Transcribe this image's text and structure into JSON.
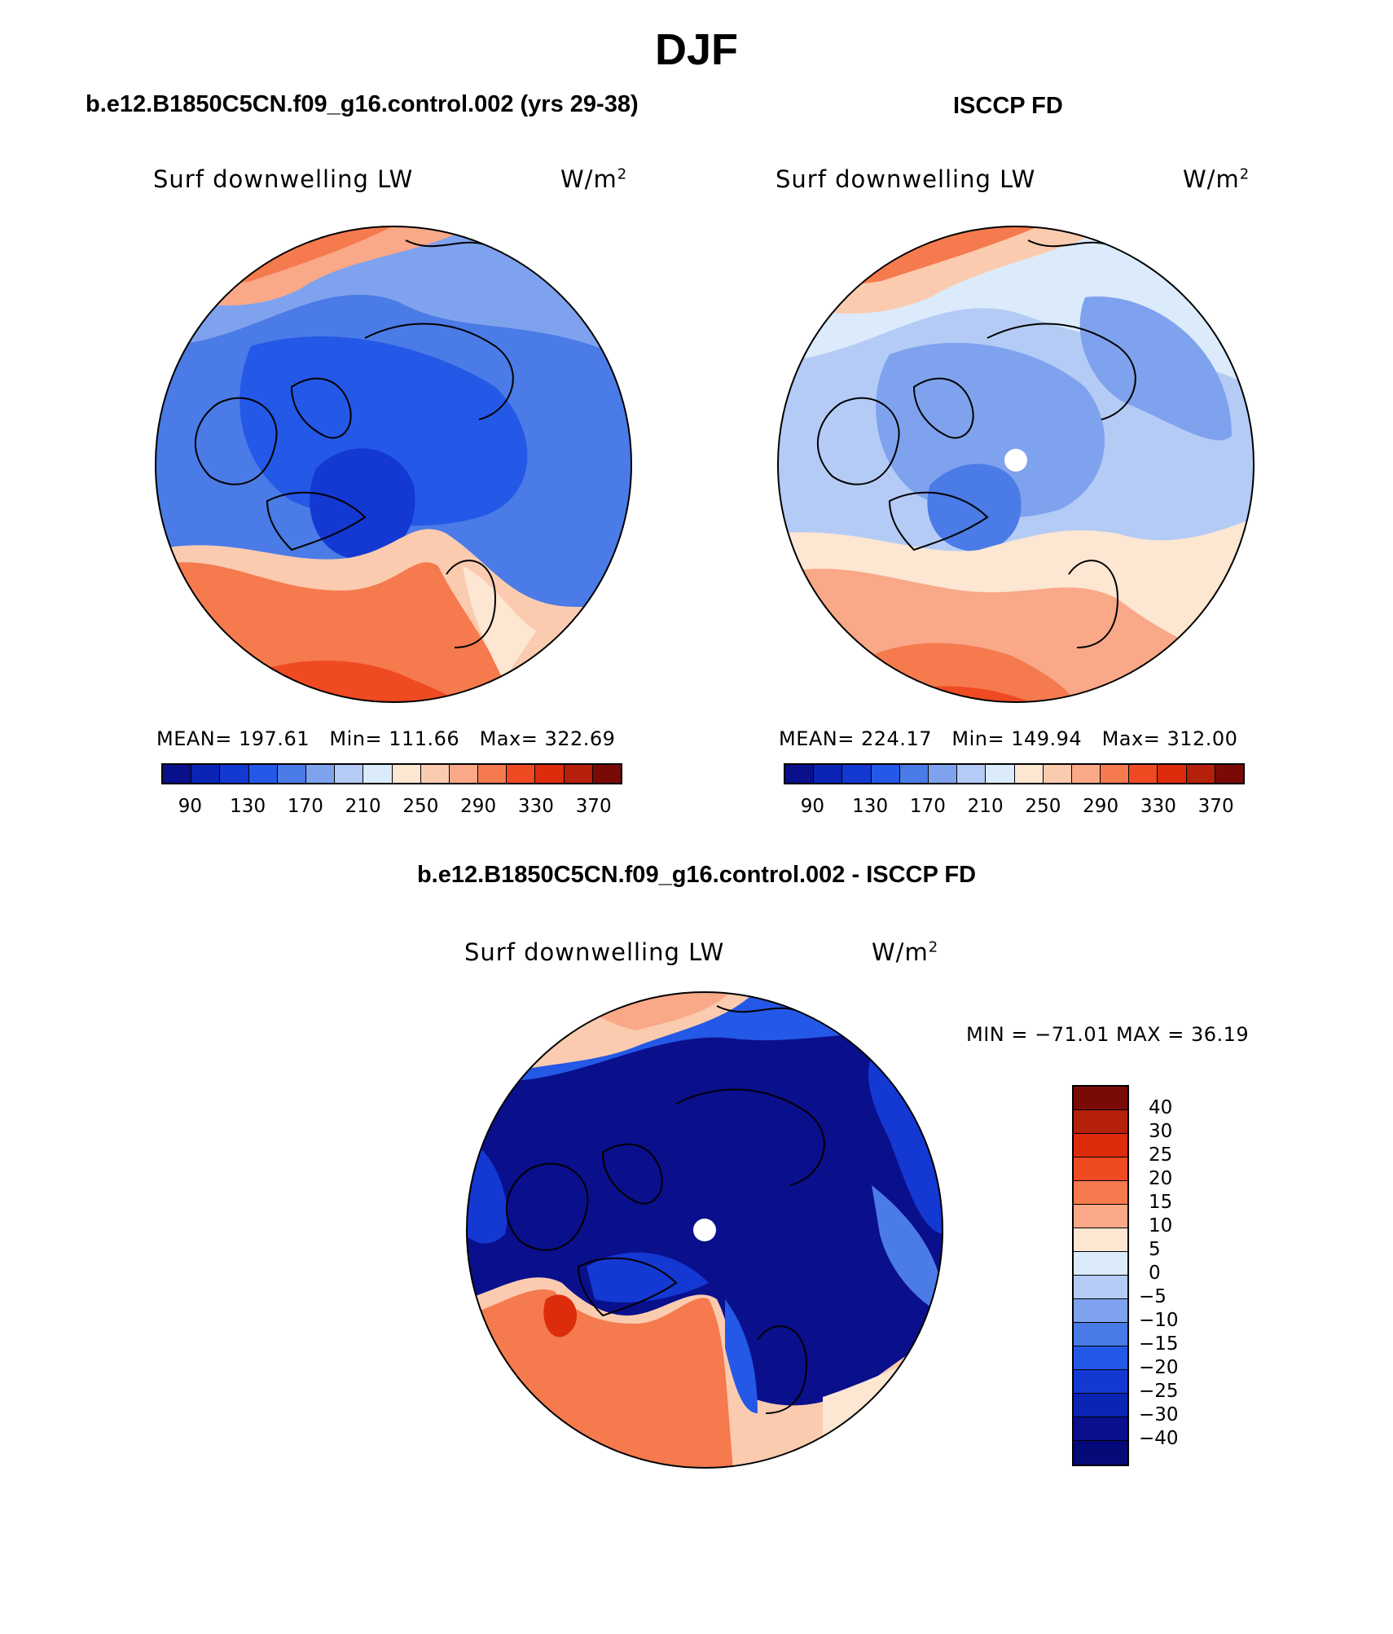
{
  "title": "DJF",
  "panels": [
    {
      "title": "b.e12.B1850C5CN.f09_g16.control.002 (yrs 29-38)",
      "variable": "Surf downwelling LW",
      "units": "W/m",
      "units_sup": "2",
      "stats": {
        "mean_label": "MEAN=",
        "mean": "197.61",
        "min_label": "Min=",
        "min": "111.66",
        "max_label": "Max=",
        "max": "322.69"
      }
    },
    {
      "title": "ISCCP FD",
      "variable": "Surf downwelling LW",
      "units": "W/m",
      "units_sup": "2",
      "stats": {
        "mean_label": "MEAN=",
        "mean": "224.17",
        "min_label": "Min=",
        "min": "149.94",
        "max_label": "Max=",
        "max": "312.00"
      }
    }
  ],
  "diff_panel": {
    "title": "b.e12.B1850C5CN.f09_g16.control.002 - ISCCP FD",
    "variable": "Surf downwelling LW",
    "units": "W/m",
    "units_sup": "2",
    "minmax": "MIN = −71.01 MAX =  36.19"
  },
  "colorbar_abs": {
    "colors": [
      "#0a0f8c",
      "#0a24b4",
      "#1438d2",
      "#2458e6",
      "#4a7be6",
      "#7fa2ee",
      "#b4cbf6",
      "#dcebfb",
      "#fde6d2",
      "#fbcbb0",
      "#f9a888",
      "#f57a4e",
      "#ef4a22",
      "#dc2c0c",
      "#b4200a",
      "#7a0a06"
    ],
    "ticks": [
      "90",
      "130",
      "170",
      "210",
      "250",
      "290",
      "330",
      "370"
    ]
  },
  "colorbar_diff": {
    "colors": [
      "#7a0a06",
      "#b4200a",
      "#dc2c0c",
      "#ef4a22",
      "#f57a4e",
      "#f9a888",
      "#fde6d2",
      "#dcebfb",
      "#b4cbf6",
      "#7fa2ee",
      "#4a7be6",
      "#2458e6",
      "#1438d2",
      "#0a24b4",
      "#0a0f8c",
      "#050a78"
    ],
    "labels": [
      "40",
      "30",
      "25",
      "20",
      "15",
      "10",
      "5",
      "0",
      "−5",
      "−10",
      "−15",
      "−20",
      "−25",
      "−30",
      "−40"
    ]
  }
}
